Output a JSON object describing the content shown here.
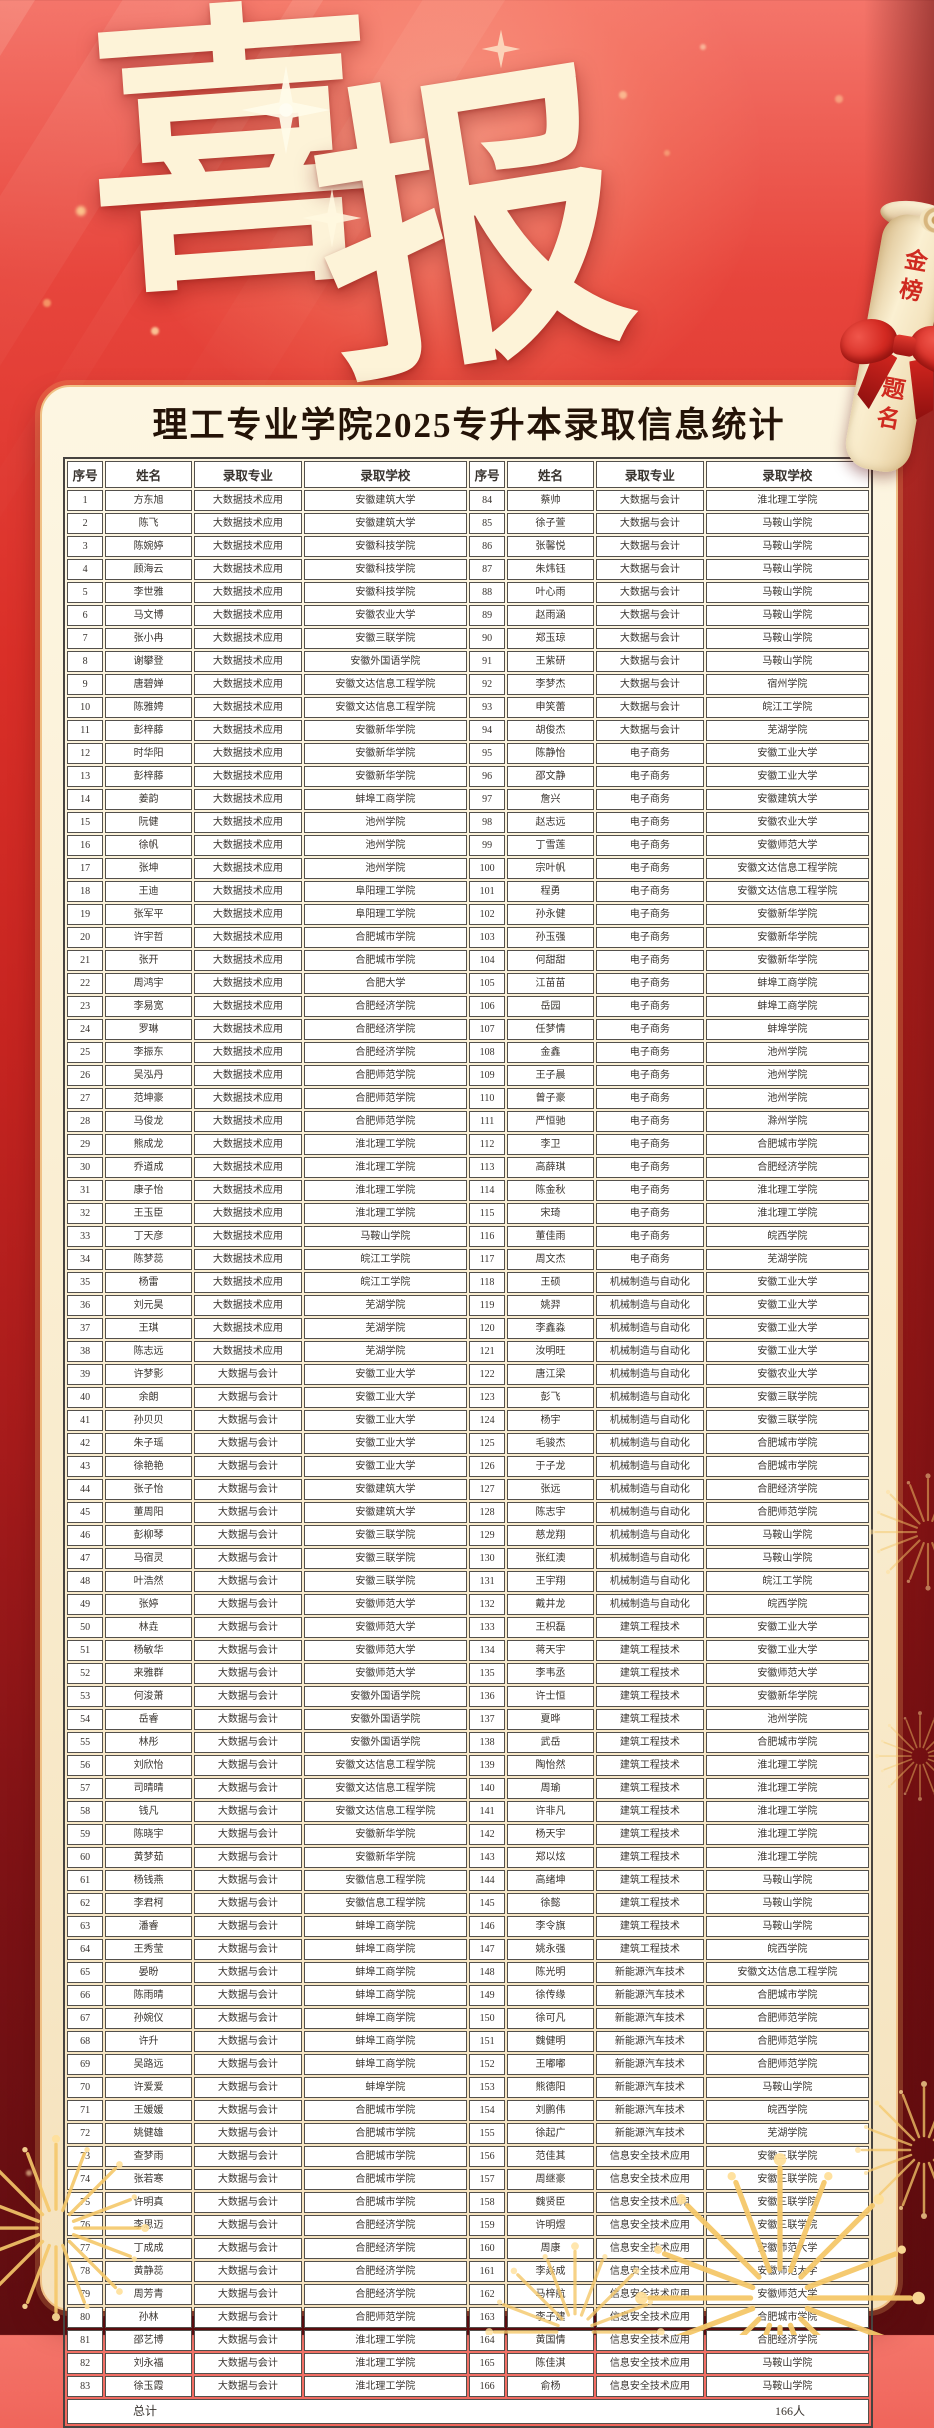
{
  "title": {
    "char1": "喜",
    "char2": "报"
  },
  "scroll": {
    "line1": "金榜",
    "line2": "题名"
  },
  "subtitle": "理工专业学院2025专升本录取信息统计",
  "colors": {
    "background_red": "#d92f28",
    "background_dark_red": "#5e0d10",
    "panel_cream": "#f9ecce",
    "panel_rim_gold": "#f0c186",
    "title_cream": "#fdf3d8",
    "subtitle_text": "#241307",
    "table_border": "#53504c",
    "table_text": "#38332e",
    "scroll_text_red": "#cf2a20",
    "ribbon_red": "#d42a22",
    "firework_gold": "#f5c86a"
  },
  "table": {
    "headers": [
      "序号",
      "姓名",
      "录取专业",
      "录取学校",
      "序号",
      "姓名",
      "录取专业",
      "录取学校"
    ],
    "total_label": "总计",
    "total_value": "166人",
    "left_rows": [
      [
        1,
        "方东旭",
        "大数据技术应用",
        "安徽建筑大学"
      ],
      [
        2,
        "陈飞",
        "大数据技术应用",
        "安徽建筑大学"
      ],
      [
        3,
        "陈婉婷",
        "大数据技术应用",
        "安徽科技学院"
      ],
      [
        4,
        "顾海云",
        "大数据技术应用",
        "安徽科技学院"
      ],
      [
        5,
        "李世雅",
        "大数据技术应用",
        "安徽科技学院"
      ],
      [
        6,
        "马文博",
        "大数据技术应用",
        "安徽农业大学"
      ],
      [
        7,
        "张小冉",
        "大数据技术应用",
        "安徽三联学院"
      ],
      [
        8,
        "谢攀登",
        "大数据技术应用",
        "安徽外国语学院"
      ],
      [
        9,
        "唐碧婵",
        "大数据技术应用",
        "安徽文达信息工程学院"
      ],
      [
        10,
        "陈雅娉",
        "大数据技术应用",
        "安徽文达信息工程学院"
      ],
      [
        11,
        "彭梓藤",
        "大数据技术应用",
        "安徽新华学院"
      ],
      [
        12,
        "时华阳",
        "大数据技术应用",
        "安徽新华学院"
      ],
      [
        13,
        "彭梓藤",
        "大数据技术应用",
        "安徽新华学院"
      ],
      [
        14,
        "姜韵",
        "大数据技术应用",
        "蚌埠工商学院"
      ],
      [
        15,
        "阮健",
        "大数据技术应用",
        "池州学院"
      ],
      [
        16,
        "徐帆",
        "大数据技术应用",
        "池州学院"
      ],
      [
        17,
        "张坤",
        "大数据技术应用",
        "池州学院"
      ],
      [
        18,
        "王迪",
        "大数据技术应用",
        "阜阳理工学院"
      ],
      [
        19,
        "张军平",
        "大数据技术应用",
        "阜阳理工学院"
      ],
      [
        20,
        "许宇哲",
        "大数据技术应用",
        "合肥城市学院"
      ],
      [
        21,
        "张开",
        "大数据技术应用",
        "合肥城市学院"
      ],
      [
        22,
        "周鸿宇",
        "大数据技术应用",
        "合肥大学"
      ],
      [
        23,
        "李易宽",
        "大数据技术应用",
        "合肥经济学院"
      ],
      [
        24,
        "罗琳",
        "大数据技术应用",
        "合肥经济学院"
      ],
      [
        25,
        "李振东",
        "大数据技术应用",
        "合肥经济学院"
      ],
      [
        26,
        "吴泓丹",
        "大数据技术应用",
        "合肥师范学院"
      ],
      [
        27,
        "范坤豪",
        "大数据技术应用",
        "合肥师范学院"
      ],
      [
        28,
        "马俊龙",
        "大数据技术应用",
        "合肥师范学院"
      ],
      [
        29,
        "熊成龙",
        "大数据技术应用",
        "淮北理工学院"
      ],
      [
        30,
        "乔道成",
        "大数据技术应用",
        "淮北理工学院"
      ],
      [
        31,
        "康子怡",
        "大数据技术应用",
        "淮北理工学院"
      ],
      [
        32,
        "王玉臣",
        "大数据技术应用",
        "淮北理工学院"
      ],
      [
        33,
        "丁天彦",
        "大数据技术应用",
        "马鞍山学院"
      ],
      [
        34,
        "陈梦蕊",
        "大数据技术应用",
        "皖江工学院"
      ],
      [
        35,
        "杨雷",
        "大数据技术应用",
        "皖江工学院"
      ],
      [
        36,
        "刘元昊",
        "大数据技术应用",
        "芜湖学院"
      ],
      [
        37,
        "王琪",
        "大数据技术应用",
        "芜湖学院"
      ],
      [
        38,
        "陈志远",
        "大数据技术应用",
        "芜湖学院"
      ],
      [
        39,
        "许梦影",
        "大数据与会计",
        "安徽工业大学"
      ],
      [
        40,
        "余朗",
        "大数据与会计",
        "安徽工业大学"
      ],
      [
        41,
        "孙贝贝",
        "大数据与会计",
        "安徽工业大学"
      ],
      [
        42,
        "朱子瑶",
        "大数据与会计",
        "安徽工业大学"
      ],
      [
        43,
        "徐艳艳",
        "大数据与会计",
        "安徽工业大学"
      ],
      [
        44,
        "张子怡",
        "大数据与会计",
        "安徽建筑大学"
      ],
      [
        45,
        "董周阳",
        "大数据与会计",
        "安徽建筑大学"
      ],
      [
        46,
        "彭柳琴",
        "大数据与会计",
        "安徽三联学院"
      ],
      [
        47,
        "马宿灵",
        "大数据与会计",
        "安徽三联学院"
      ],
      [
        48,
        "叶浩然",
        "大数据与会计",
        "安徽三联学院"
      ],
      [
        49,
        "张婷",
        "大数据与会计",
        "安徽师范大学"
      ],
      [
        50,
        "林垚",
        "大数据与会计",
        "安徽师范大学"
      ],
      [
        51,
        "杨敏华",
        "大数据与会计",
        "安徽师范大学"
      ],
      [
        52,
        "来雅群",
        "大数据与会计",
        "安徽师范大学"
      ],
      [
        53,
        "何浚萧",
        "大数据与会计",
        "安徽外国语学院"
      ],
      [
        54,
        "岳睿",
        "大数据与会计",
        "安徽外国语学院"
      ],
      [
        55,
        "林彤",
        "大数据与会计",
        "安徽外国语学院"
      ],
      [
        56,
        "刘欣怡",
        "大数据与会计",
        "安徽文达信息工程学院"
      ],
      [
        57,
        "司晴晴",
        "大数据与会计",
        "安徽文达信息工程学院"
      ],
      [
        58,
        "钱凡",
        "大数据与会计",
        "安徽文达信息工程学院"
      ],
      [
        59,
        "陈晓宇",
        "大数据与会计",
        "安徽新华学院"
      ],
      [
        60,
        "黄梦茹",
        "大数据与会计",
        "安徽新华学院"
      ],
      [
        61,
        "杨钱燕",
        "大数据与会计",
        "安徽信息工程学院"
      ],
      [
        62,
        "李君柯",
        "大数据与会计",
        "安徽信息工程学院"
      ],
      [
        63,
        "潘睿",
        "大数据与会计",
        "蚌埠工商学院"
      ],
      [
        64,
        "王秀莹",
        "大数据与会计",
        "蚌埠工商学院"
      ],
      [
        65,
        "晏盼",
        "大数据与会计",
        "蚌埠工商学院"
      ],
      [
        66,
        "陈雨晴",
        "大数据与会计",
        "蚌埠工商学院"
      ],
      [
        67,
        "孙婉仪",
        "大数据与会计",
        "蚌埠工商学院"
      ],
      [
        68,
        "许升",
        "大数据与会计",
        "蚌埠工商学院"
      ],
      [
        69,
        "吴路远",
        "大数据与会计",
        "蚌埠工商学院"
      ],
      [
        70,
        "许爱爱",
        "大数据与会计",
        "蚌埠学院"
      ],
      [
        71,
        "王媛媛",
        "大数据与会计",
        "合肥城市学院"
      ],
      [
        72,
        "姚健雄",
        "大数据与会计",
        "合肥城市学院"
      ],
      [
        73,
        "查梦雨",
        "大数据与会计",
        "合肥城市学院"
      ],
      [
        74,
        "张若寒",
        "大数据与会计",
        "合肥城市学院"
      ],
      [
        75,
        "许明真",
        "大数据与会计",
        "合肥城市学院"
      ],
      [
        76,
        "李思迈",
        "大数据与会计",
        "合肥经济学院"
      ],
      [
        77,
        "丁成成",
        "大数据与会计",
        "合肥经济学院"
      ],
      [
        78,
        "黄静蕊",
        "大数据与会计",
        "合肥经济学院"
      ],
      [
        79,
        "周芳青",
        "大数据与会计",
        "合肥经济学院"
      ],
      [
        80,
        "孙林",
        "大数据与会计",
        "合肥师范学院"
      ],
      [
        81,
        "邵艺博",
        "大数据与会计",
        "淮北理工学院"
      ],
      [
        82,
        "刘永福",
        "大数据与会计",
        "淮北理工学院"
      ],
      [
        83,
        "徐玉霞",
        "大数据与会计",
        "淮北理工学院"
      ]
    ],
    "right_rows": [
      [
        84,
        "蔡帅",
        "大数据与会计",
        "淮北理工学院"
      ],
      [
        85,
        "徐子萱",
        "大数据与会计",
        "马鞍山学院"
      ],
      [
        86,
        "张馨悦",
        "大数据与会计",
        "马鞍山学院"
      ],
      [
        87,
        "朱炜钰",
        "大数据与会计",
        "马鞍山学院"
      ],
      [
        88,
        "叶心雨",
        "大数据与会计",
        "马鞍山学院"
      ],
      [
        89,
        "赵雨涵",
        "大数据与会计",
        "马鞍山学院"
      ],
      [
        90,
        "郑玉琼",
        "大数据与会计",
        "马鞍山学院"
      ],
      [
        91,
        "王紫研",
        "大数据与会计",
        "马鞍山学院"
      ],
      [
        92,
        "李梦杰",
        "大数据与会计",
        "宿州学院"
      ],
      [
        93,
        "申笑蕾",
        "大数据与会计",
        "皖江工学院"
      ],
      [
        94,
        "胡俊杰",
        "大数据与会计",
        "芜湖学院"
      ],
      [
        95,
        "陈静怡",
        "电子商务",
        "安徽工业大学"
      ],
      [
        96,
        "邵文静",
        "电子商务",
        "安徽工业大学"
      ],
      [
        97,
        "詹兴",
        "电子商务",
        "安徽建筑大学"
      ],
      [
        98,
        "赵志远",
        "电子商务",
        "安徽农业大学"
      ],
      [
        99,
        "丁雪莲",
        "电子商务",
        "安徽师范大学"
      ],
      [
        100,
        "宗叶帆",
        "电子商务",
        "安徽文达信息工程学院"
      ],
      [
        101,
        "程勇",
        "电子商务",
        "安徽文达信息工程学院"
      ],
      [
        102,
        "孙永健",
        "电子商务",
        "安徽新华学院"
      ],
      [
        103,
        "孙玉强",
        "电子商务",
        "安徽新华学院"
      ],
      [
        104,
        "何甜甜",
        "电子商务",
        "安徽新华学院"
      ],
      [
        105,
        "江苗苗",
        "电子商务",
        "蚌埠工商学院"
      ],
      [
        106,
        "岳园",
        "电子商务",
        "蚌埠工商学院"
      ],
      [
        107,
        "任梦情",
        "电子商务",
        "蚌埠学院"
      ],
      [
        108,
        "金鑫",
        "电子商务",
        "池州学院"
      ],
      [
        109,
        "王子晨",
        "电子商务",
        "池州学院"
      ],
      [
        110,
        "曾子豪",
        "电子商务",
        "池州学院"
      ],
      [
        111,
        "严恒驰",
        "电子商务",
        "滁州学院"
      ],
      [
        112,
        "李卫",
        "电子商务",
        "合肥城市学院"
      ],
      [
        113,
        "高薛琪",
        "电子商务",
        "合肥经济学院"
      ],
      [
        114,
        "陈金秋",
        "电子商务",
        "淮北理工学院"
      ],
      [
        115,
        "宋琦",
        "电子商务",
        "淮北理工学院"
      ],
      [
        116,
        "董佳雨",
        "电子商务",
        "皖西学院"
      ],
      [
        117,
        "周文杰",
        "电子商务",
        "芜湖学院"
      ],
      [
        118,
        "王硕",
        "机械制造与自动化",
        "安徽工业大学"
      ],
      [
        119,
        "姚羿",
        "机械制造与自动化",
        "安徽工业大学"
      ],
      [
        120,
        "李鑫淼",
        "机械制造与自动化",
        "安徽工业大学"
      ],
      [
        121,
        "汝明旺",
        "机械制造与自动化",
        "安徽工业大学"
      ],
      [
        122,
        "唐江梁",
        "机械制造与自动化",
        "安徽农业大学"
      ],
      [
        123,
        "彭飞",
        "机械制造与自动化",
        "安徽三联学院"
      ],
      [
        124,
        "杨宇",
        "机械制造与自动化",
        "安徽三联学院"
      ],
      [
        125,
        "毛骏杰",
        "机械制造与自动化",
        "合肥城市学院"
      ],
      [
        126,
        "于子龙",
        "机械制造与自动化",
        "合肥城市学院"
      ],
      [
        127,
        "张远",
        "机械制造与自动化",
        "合肥经济学院"
      ],
      [
        128,
        "陈志宇",
        "机械制造与自动化",
        "合肥师范学院"
      ],
      [
        129,
        "慈龙翔",
        "机械制造与自动化",
        "马鞍山学院"
      ],
      [
        130,
        "张红澳",
        "机械制造与自动化",
        "马鞍山学院"
      ],
      [
        131,
        "王宇翔",
        "机械制造与自动化",
        "皖江工学院"
      ],
      [
        132,
        "戴井龙",
        "机械制造与自动化",
        "皖西学院"
      ],
      [
        133,
        "王枳磊",
        "建筑工程技术",
        "安徽工业大学"
      ],
      [
        134,
        "蒋天宇",
        "建筑工程技术",
        "安徽工业大学"
      ],
      [
        135,
        "李韦丞",
        "建筑工程技术",
        "安徽师范大学"
      ],
      [
        136,
        "许士恒",
        "建筑工程技术",
        "安徽新华学院"
      ],
      [
        137,
        "夏晔",
        "建筑工程技术",
        "池州学院"
      ],
      [
        138,
        "武岳",
        "建筑工程技术",
        "合肥城市学院"
      ],
      [
        139,
        "陶怡然",
        "建筑工程技术",
        "淮北理工学院"
      ],
      [
        140,
        "周瑜",
        "建筑工程技术",
        "淮北理工学院"
      ],
      [
        141,
        "许非凡",
        "建筑工程技术",
        "淮北理工学院"
      ],
      [
        142,
        "杨天宇",
        "建筑工程技术",
        "淮北理工学院"
      ],
      [
        143,
        "郑以炫",
        "建筑工程技术",
        "淮北理工学院"
      ],
      [
        144,
        "高绪坤",
        "建筑工程技术",
        "马鞍山学院"
      ],
      [
        145,
        "徐懿",
        "建筑工程技术",
        "马鞍山学院"
      ],
      [
        146,
        "李令旗",
        "建筑工程技术",
        "马鞍山学院"
      ],
      [
        147,
        "姚永强",
        "建筑工程技术",
        "皖西学院"
      ],
      [
        148,
        "陈光明",
        "新能源汽车技术",
        "安徽文达信息工程学院"
      ],
      [
        149,
        "徐传缘",
        "新能源汽车技术",
        "合肥城市学院"
      ],
      [
        150,
        "徐可凡",
        "新能源汽车技术",
        "合肥师范学院"
      ],
      [
        151,
        "魏健明",
        "新能源汽车技术",
        "合肥师范学院"
      ],
      [
        152,
        "王嘟嘟",
        "新能源汽车技术",
        "合肥师范学院"
      ],
      [
        153,
        "熊德阳",
        "新能源汽车技术",
        "马鞍山学院"
      ],
      [
        154,
        "刘鹏伟",
        "新能源汽车技术",
        "皖西学院"
      ],
      [
        155,
        "徐起广",
        "新能源汽车技术",
        "芜湖学院"
      ],
      [
        156,
        "范佳其",
        "信息安全技术应用",
        "安徽三联学院"
      ],
      [
        157,
        "周继豪",
        "信息安全技术应用",
        "安徽三联学院"
      ],
      [
        158,
        "魏贤臣",
        "信息安全技术应用",
        "安徽三联学院"
      ],
      [
        159,
        "许明煜",
        "信息安全技术应用",
        "安徽三联学院"
      ],
      [
        160,
        "周康",
        "信息安全技术应用",
        "安徽师范大学"
      ],
      [
        161,
        "李焱成",
        "信息安全技术应用",
        "安徽师范大学"
      ],
      [
        162,
        "马梓航",
        "信息安全技术应用",
        "安徽师范大学"
      ],
      [
        163,
        "李子建",
        "信息安全技术应用",
        "合肥城市学院"
      ],
      [
        164,
        "黄国情",
        "信息安全技术应用",
        "合肥经济学院"
      ],
      [
        165,
        "陈佳淇",
        "信息安全技术应用",
        "马鞍山学院"
      ],
      [
        166,
        "俞杨",
        "信息安全技术应用",
        "马鞍山学院"
      ]
    ]
  }
}
